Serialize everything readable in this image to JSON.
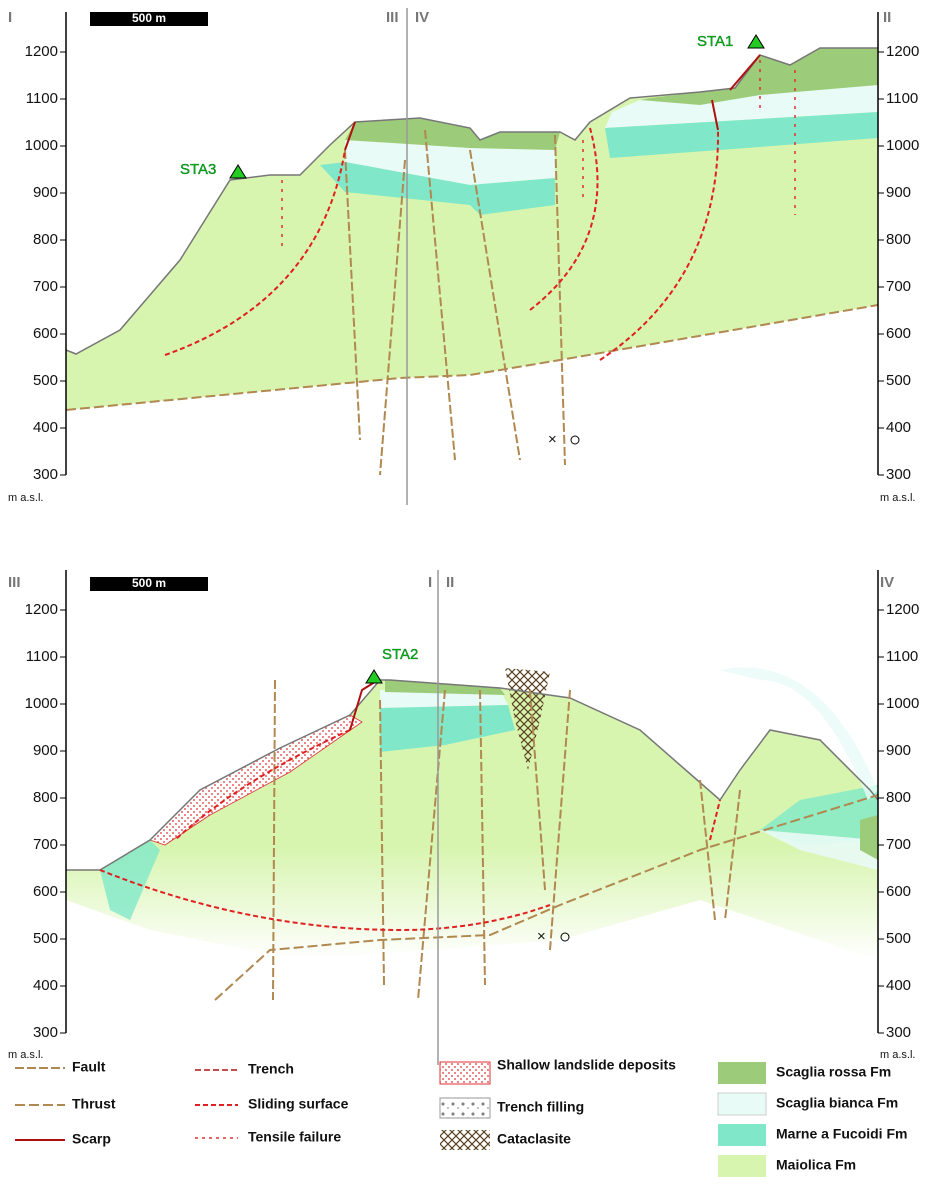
{
  "panels": [
    {
      "labels": {
        "left": "I",
        "right": "II",
        "mid_left": "III",
        "mid_right": "IV"
      },
      "scale_bar": "500 m",
      "elevation_ticks": [
        300,
        400,
        500,
        600,
        700,
        800,
        900,
        1000,
        1100,
        1200
      ],
      "unit": "m a.s.l.",
      "stations": [
        "STA3",
        "STA1"
      ]
    },
    {
      "labels": {
        "left": "III",
        "right": "IV",
        "mid_left": "I",
        "mid_right": "II"
      },
      "scale_bar": "500 m",
      "elevation_ticks": [
        300,
        400,
        500,
        600,
        700,
        800,
        900,
        1000,
        1100,
        1200
      ],
      "unit": "m a.s.l.",
      "stations": [
        "STA2"
      ]
    }
  ],
  "legend": {
    "symbols": [
      "Fault",
      "Thrust",
      "Scarp",
      "Trench",
      "Sliding surface",
      "Tensile failure",
      "Shallow landslide deposits",
      "Trench filling",
      "Cataclasite"
    ],
    "formations": [
      "Scaglia rossa Fm",
      "Scaglia bianca Fm",
      "Marne a Fucoidi Fm",
      "Maiolica Fm"
    ]
  }
}
